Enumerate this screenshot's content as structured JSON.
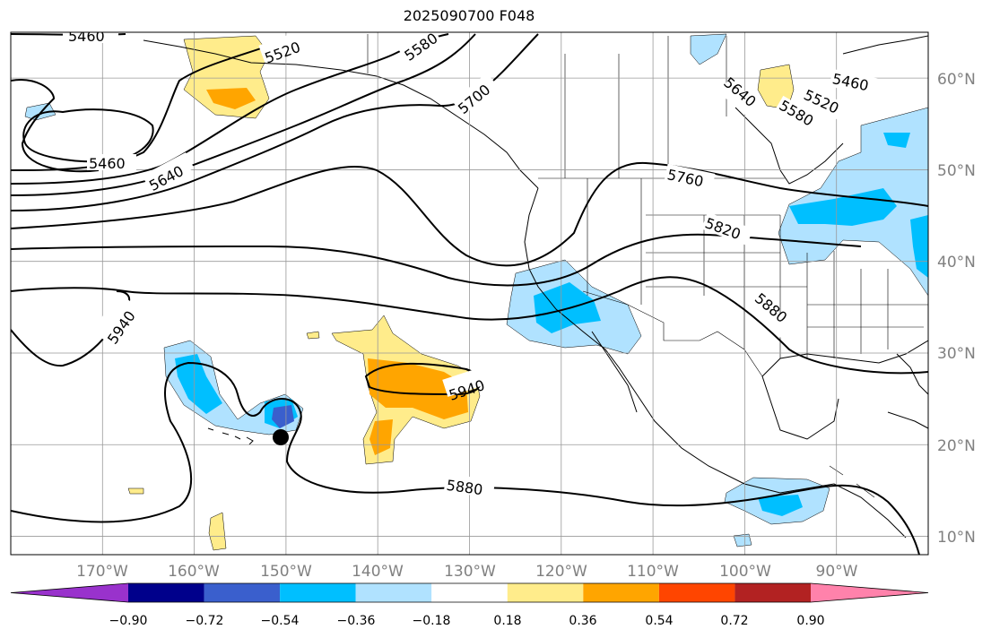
{
  "title": "2025090700 F048",
  "map": {
    "projection": "PlateCarree",
    "lon_range": [
      -180,
      -80
    ],
    "lat_range": [
      8,
      65
    ],
    "gridlines": true,
    "lat_labels": [
      "60°N",
      "50°N",
      "40°N",
      "30°N",
      "20°N",
      "10°N"
    ],
    "lon_labels": [
      "170°W",
      "160°W",
      "150°W",
      "140°W",
      "130°W",
      "120°W",
      "110°W",
      "100°W",
      "90°W"
    ],
    "contour_labels": [
      "5460",
      "5520",
      "5580",
      "5700",
      "5460",
      "5640",
      "5760",
      "5820",
      "5940",
      "5940",
      "5880",
      "5880",
      "5640",
      "5580",
      "5520",
      "5460"
    ],
    "marker": "black-dot"
  },
  "colorbar": {
    "ticks": [
      "−0.90",
      "−0.72",
      "−0.54",
      "−0.36",
      "−0.18",
      "0.18",
      "0.36",
      "0.54",
      "0.72",
      "0.90"
    ],
    "colors": [
      "#9932cc",
      "#00008b",
      "#3a5fcd",
      "#00bfff",
      "#b0e2ff",
      "#ffffff",
      "#ffec8b",
      "#ffa500",
      "#ff4500",
      "#b22222",
      "#ff82ab"
    ],
    "extend": "both"
  }
}
